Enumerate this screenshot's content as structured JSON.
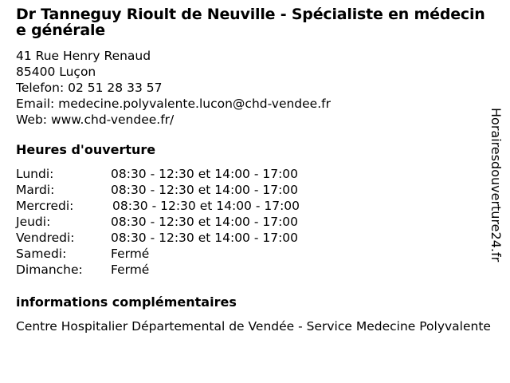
{
  "title": "Dr Tanneguy Rioult de Neuville - Spécialiste en médecine générale",
  "address": {
    "street": "41 Rue Henry Renaud",
    "city": "85400 Luçon",
    "phone": "Telefon: 02 51 28 33 57",
    "email": "Email: medecine.polyvalente.lucon@chd-vendee.fr",
    "web": "Web: www.chd-vendee.fr/"
  },
  "hours_heading": "Heures d'ouverture",
  "hours": [
    {
      "day": "Lundi:",
      "time": "08:30 - 12:30 et 14:00 - 17:00"
    },
    {
      "day": "Mardi:",
      "time": "08:30 - 12:30 et 14:00 - 17:00"
    },
    {
      "day": "Mercredi:",
      "time": "08:30 - 12:30 et 14:00 - 17:00"
    },
    {
      "day": "Jeudi:",
      "time": "08:30 - 12:30 et 14:00 - 17:00"
    },
    {
      "day": "Vendredi:",
      "time": "08:30 - 12:30 et 14:00 - 17:00"
    },
    {
      "day": "Samedi:",
      "time": "Fermé"
    },
    {
      "day": "Dimanche:",
      "time": "Fermé"
    }
  ],
  "info_heading": "informations complémentaires",
  "info_text": "Centre Hospitalier Départemental de Vendée - Service Medecine Polyvalente",
  "watermark": "Horairesdouverture24.fr"
}
